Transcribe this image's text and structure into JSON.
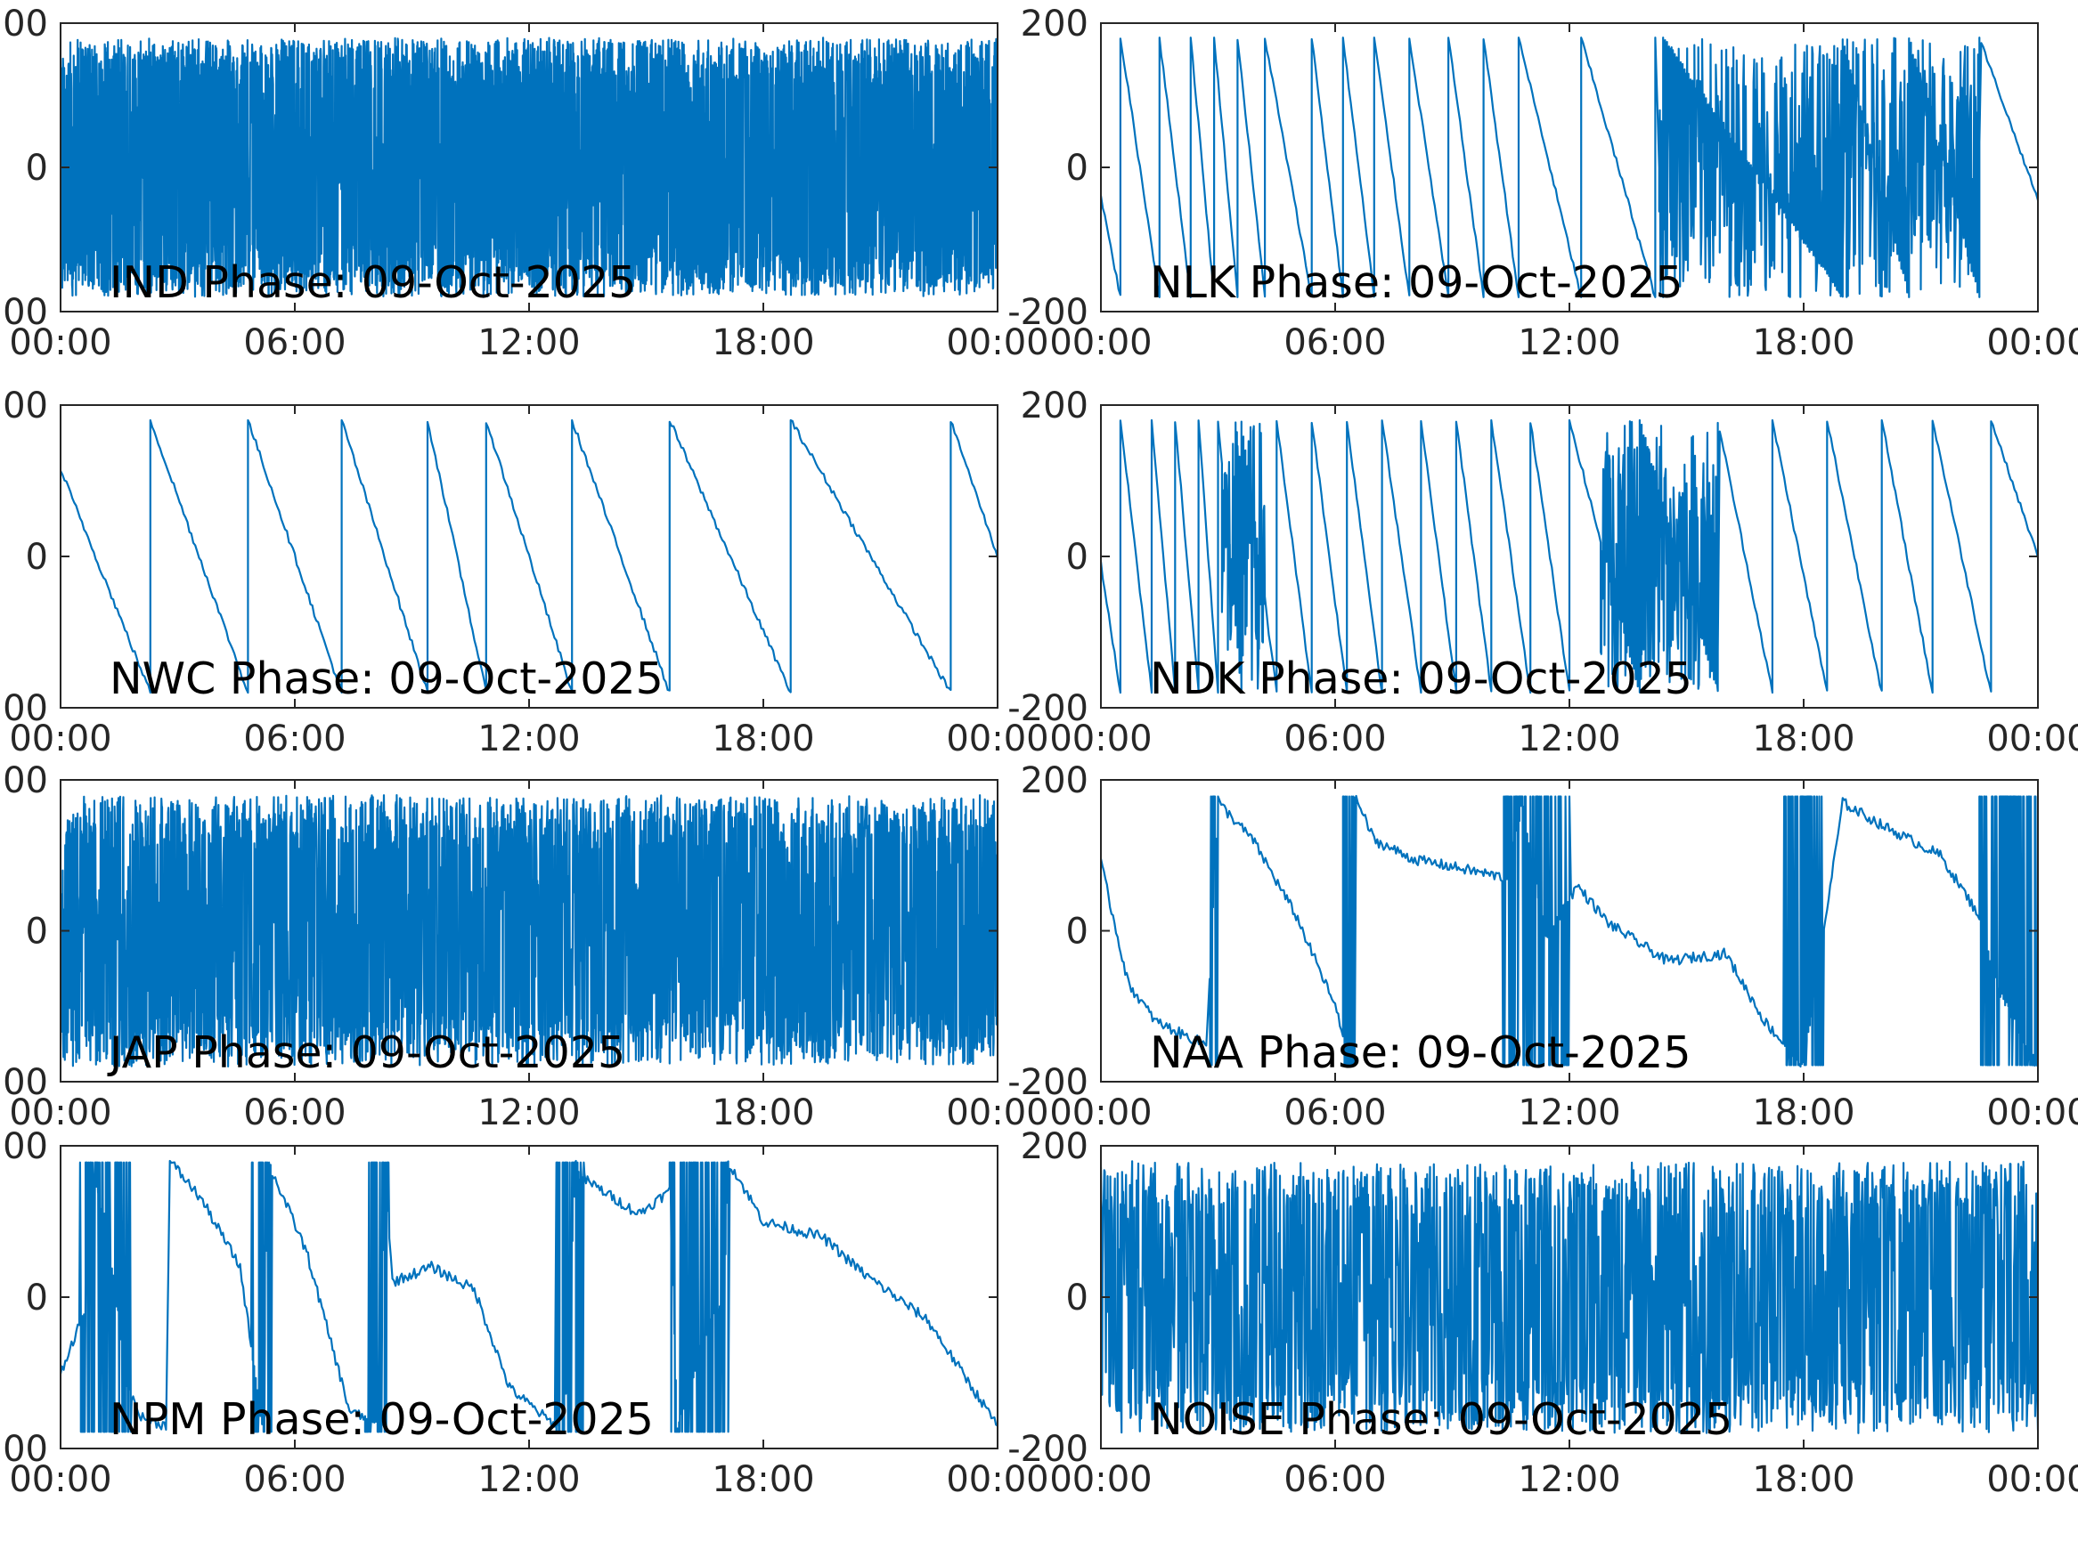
{
  "figure": {
    "line_color": "#0072BD",
    "x_tick_labels": [
      "00:00",
      "06:00",
      "12:00",
      "18:00",
      "00:00"
    ],
    "y_tick_labels": [
      "-200",
      "0",
      "200"
    ]
  },
  "chart_data": [
    {
      "type": "line",
      "station": "IND",
      "title": "IND Phase: 09-Oct-2025",
      "xlabel": "",
      "ylabel": "",
      "ylim": [
        -200,
        200
      ],
      "x_range": [
        "09-Oct-2025 00:00",
        "10-Oct-2025 00:00"
      ],
      "x_ticks": [
        "00:00",
        "06:00",
        "12:00",
        "18:00",
        "00:00"
      ],
      "pattern": "noise",
      "density": 160
    },
    {
      "type": "line",
      "station": "NLK",
      "title": "NLK Phase: 09-Oct-2025",
      "xlabel": "",
      "ylabel": "",
      "ylim": [
        -200,
        200
      ],
      "x_range": [
        "09-Oct-2025 00:00",
        "10-Oct-2025 00:00"
      ],
      "x_ticks": [
        "00:00",
        "06:00",
        "12:00",
        "18:00",
        "00:00"
      ],
      "pattern": "sawtooth",
      "wraps": [
        0.5,
        1.5,
        2.3,
        2.9,
        3.5,
        4.2,
        5.4,
        6.2,
        7.0,
        7.9,
        8.9,
        9.8,
        10.7,
        12.3,
        14.2,
        14.4,
        19.0,
        20.7,
        22.5
      ],
      "noise_intervals": [
        [
          14.3,
          22.5
        ]
      ],
      "x": [
        0.0,
        0.5
      ],
      "y": [
        -40,
        -180
      ]
    },
    {
      "type": "line",
      "station": "NWC",
      "title": "NWC Phase: 09-Oct-2025",
      "xlabel": "",
      "ylabel": "",
      "ylim": [
        -200,
        200
      ],
      "x_range": [
        "09-Oct-2025 00:00",
        "10-Oct-2025 00:00"
      ],
      "x_ticks": [
        "00:00",
        "06:00",
        "12:00",
        "18:00",
        "00:00"
      ],
      "pattern": "sawtooth",
      "wraps": [
        2.3,
        4.8,
        7.2,
        9.4,
        10.9,
        13.1,
        15.6,
        18.7,
        22.8
      ],
      "x": [
        0.0,
        2.3,
        2.3,
        4.8,
        4.8,
        7.2,
        7.2,
        9.4,
        9.4,
        10.9,
        10.9,
        13.1,
        13.1,
        15.6,
        15.6,
        18.5,
        18.6,
        18.8,
        19.4,
        20.3,
        20.8,
        21.3,
        21.7,
        22.2,
        22.8,
        22.8,
        24.0
      ],
      "y": [
        115,
        -180,
        180,
        -180,
        180,
        -180,
        180,
        -180,
        180,
        -180,
        180,
        -180,
        180,
        -180,
        180,
        -170,
        -175,
        180,
        150,
        60,
        -40,
        -60,
        -30,
        -60,
        -180,
        180,
        15
      ]
    },
    {
      "type": "line",
      "station": "NDK",
      "title": "NDK Phase: 09-Oct-2025",
      "xlabel": "",
      "ylabel": "",
      "ylim": [
        -200,
        200
      ],
      "x_range": [
        "09-Oct-2025 00:00",
        "10-Oct-2025 00:00"
      ],
      "x_ticks": [
        "00:00",
        "06:00",
        "12:00",
        "18:00",
        "00:00"
      ],
      "pattern": "sawtooth",
      "wraps": [
        0.5,
        1.3,
        1.9,
        2.5,
        3.0,
        3.6,
        4.5,
        5.4,
        6.3,
        7.2,
        8.2,
        9.1,
        10.0,
        11.0,
        12.0,
        13.8,
        15.8,
        17.2,
        18.6,
        20.0,
        21.3,
        22.8
      ],
      "noise_intervals": [
        [
          12.8,
          15.8
        ],
        [
          3.1,
          4.2
        ]
      ],
      "x": [
        0.0,
        0.5
      ],
      "y": [
        -10,
        -180
      ]
    },
    {
      "type": "line",
      "station": "JAP",
      "title": "JAP Phase: 09-Oct-2025",
      "xlabel": "",
      "ylabel": "",
      "ylim": [
        -200,
        200
      ],
      "x_range": [
        "09-Oct-2025 00:00",
        "10-Oct-2025 00:00"
      ],
      "x_ticks": [
        "00:00",
        "06:00",
        "12:00",
        "18:00",
        "00:00"
      ],
      "pattern": "noise",
      "density": 110
    },
    {
      "type": "line",
      "station": "NAA",
      "title": "NAA Phase: 09-Oct-2025",
      "xlabel": "",
      "ylabel": "",
      "ylim": [
        -200,
        200
      ],
      "x_range": [
        "09-Oct-2025 00:00",
        "10-Oct-2025 00:00"
      ],
      "x_ticks": [
        "00:00",
        "06:00",
        "12:00",
        "18:00",
        "00:00"
      ],
      "pattern": "drift",
      "x": [
        0.0,
        0.7,
        1.4,
        2.2,
        2.7,
        3.0,
        3.9,
        5.0,
        6.0,
        6.4,
        6.5,
        7.0,
        8.0,
        9.0,
        10.4,
        10.8,
        11.4,
        12.2,
        13.0,
        14.5,
        16.0,
        17.0,
        18.0,
        19.0,
        20.0,
        21.5,
        22.5,
        23.0,
        24.0
      ],
      "y": [
        90,
        -70,
        -120,
        -140,
        -150,
        170,
        120,
        20,
        -100,
        -180,
        180,
        120,
        95,
        85,
        70,
        170,
        -10,
        60,
        10,
        -40,
        -30,
        -120,
        -180,
        170,
        140,
        100,
        20,
        -80,
        -180
      ],
      "noise_intervals": [
        [
          2.8,
          3.0
        ],
        [
          6.2,
          6.5
        ],
        [
          10.3,
          12.0
        ],
        [
          17.5,
          18.5
        ],
        [
          22.5,
          24.0
        ]
      ]
    },
    {
      "type": "line",
      "station": "NPM",
      "title": "NPM Phase: 09-Oct-2025",
      "xlabel": "",
      "ylabel": "",
      "ylim": [
        -200,
        200
      ],
      "x_range": [
        "09-Oct-2025 00:00",
        "10-Oct-2025 00:00"
      ],
      "x_ticks": [
        "00:00",
        "06:00",
        "12:00",
        "18:00",
        "00:00"
      ],
      "pattern": "drift",
      "x": [
        0.0,
        0.6,
        0.8,
        1.2,
        1.7,
        2.1,
        2.7,
        2.8,
        3.6,
        4.6,
        5.2,
        5.3,
        6.3,
        7.4,
        8.2,
        8.3,
        8.5,
        9.5,
        10.6,
        11.5,
        12.9,
        13.2,
        13.3,
        14.8,
        15.6,
        15.8,
        16.5,
        17.0,
        17.1,
        18.0,
        19.5,
        20.6,
        22.2,
        24.0
      ],
      "y": [
        -100,
        -20,
        160,
        90,
        -120,
        -160,
        -170,
        180,
        130,
        40,
        -180,
        180,
        60,
        -150,
        -170,
        175,
        20,
        40,
        10,
        -120,
        -180,
        180,
        160,
        110,
        140,
        -170,
        -50,
        5,
        180,
        100,
        80,
        30,
        -30,
        -170
      ],
      "noise_intervals": [
        [
          0.5,
          1.8
        ],
        [
          4.9,
          5.4
        ],
        [
          7.8,
          8.4
        ],
        [
          12.7,
          13.4
        ],
        [
          15.6,
          17.1
        ]
      ]
    },
    {
      "type": "line",
      "station": "NOISE",
      "title": "NOISE Phase: 09-Oct-2025",
      "xlabel": "",
      "ylabel": "",
      "ylim": [
        -200,
        200
      ],
      "x_range": [
        "09-Oct-2025 00:00",
        "10-Oct-2025 00:00"
      ],
      "x_ticks": [
        "00:00",
        "06:00",
        "12:00",
        "18:00",
        "00:00"
      ],
      "pattern": "noise",
      "density": 70
    }
  ]
}
